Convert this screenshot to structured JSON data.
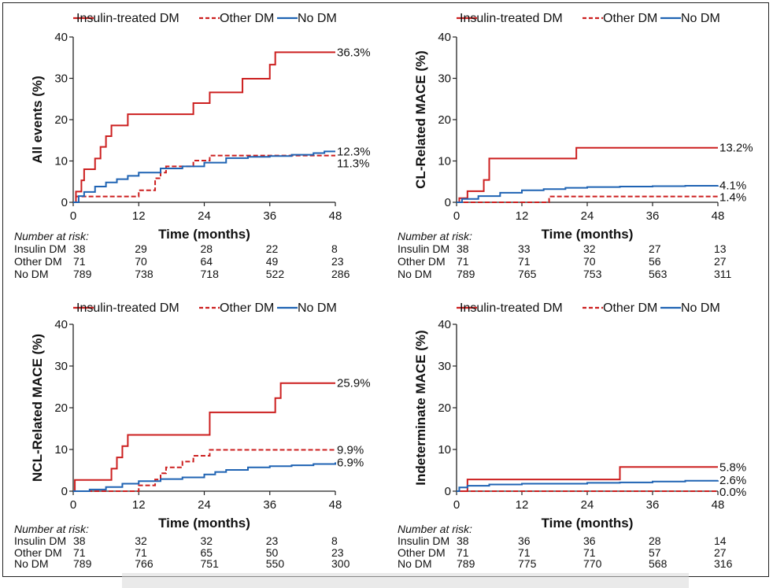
{
  "colors": {
    "insulin": "#cc1f1f",
    "other": "#cc1f1f",
    "nodm": "#1f63b3"
  },
  "legend": [
    {
      "label": "Insulin-treated DM",
      "style": "solid",
      "color": "#cc1f1f"
    },
    {
      "label": "Other DM",
      "style": "dashed",
      "color": "#cc1f1f"
    },
    {
      "label": "No DM",
      "style": "solid",
      "color": "#1f63b3"
    }
  ],
  "chart_data": [
    {
      "type": "line",
      "ylabel": "All events (%)",
      "xlabel": "Time (months)",
      "xlim": [
        0,
        48
      ],
      "ylim": [
        0,
        40
      ],
      "xticks": [
        0,
        12,
        24,
        36,
        48
      ],
      "yticks": [
        0,
        10,
        20,
        30,
        40
      ],
      "series": [
        {
          "name": "Insulin-treated DM",
          "style": "solid",
          "end_label": "36.3%",
          "x": [
            0,
            0.5,
            1.5,
            2,
            4,
            5,
            6,
            7,
            8,
            10,
            22,
            25,
            31,
            36,
            37,
            48
          ],
          "y": [
            0,
            2.6,
            5.3,
            8.0,
            10.6,
            13.4,
            16.0,
            18.6,
            18.6,
            21.3,
            24.0,
            26.6,
            29.9,
            33.3,
            36.3,
            36.3
          ]
        },
        {
          "name": "Other DM",
          "style": "dashed",
          "end_label": "11.3%",
          "x": [
            0,
            0.5,
            11,
            12,
            15,
            16,
            17,
            22,
            25,
            48
          ],
          "y": [
            0,
            1.4,
            1.4,
            2.9,
            5.8,
            7.2,
            8.7,
            10.1,
            11.3,
            11.3
          ]
        },
        {
          "name": "No DM",
          "style": "solid",
          "end_label": "12.3%",
          "x": [
            0,
            1,
            2,
            4,
            6,
            8,
            10,
            12,
            16,
            20,
            24,
            28,
            32,
            36,
            40,
            44,
            46,
            48
          ],
          "y": [
            0,
            1.5,
            2.5,
            3.8,
            4.8,
            5.6,
            6.4,
            7.2,
            8.2,
            8.7,
            9.6,
            10.7,
            11.0,
            11.2,
            11.5,
            11.9,
            12.3,
            12.3
          ]
        }
      ],
      "risk": {
        "title": "Number at risk:",
        "times": [
          0,
          12,
          24,
          36,
          48
        ],
        "rows": [
          {
            "label": "Insulin DM",
            "values": [
              "38",
              "29",
              "28",
              "22",
              "8"
            ]
          },
          {
            "label": "Other DM",
            "values": [
              "71",
              "70",
              "64",
              "49",
              "23"
            ]
          },
          {
            "label": "No DM",
            "values": [
              "789",
              "738",
              "718",
              "522",
              "286"
            ]
          }
        ]
      }
    },
    {
      "type": "line",
      "ylabel": "CL-Related MACE (%)",
      "xlabel": "Time (months)",
      "xlim": [
        0,
        48
      ],
      "ylim": [
        0,
        40
      ],
      "xticks": [
        0,
        12,
        24,
        36,
        48
      ],
      "yticks": [
        0,
        10,
        20,
        30,
        40
      ],
      "series": [
        {
          "name": "Insulin-treated DM",
          "style": "solid",
          "end_label": "13.2%",
          "x": [
            0,
            0.5,
            2,
            5,
            6,
            22,
            48
          ],
          "y": [
            0,
            1.0,
            2.7,
            5.4,
            10.6,
            13.2,
            13.2
          ]
        },
        {
          "name": "Other DM",
          "style": "dashed",
          "end_label": "1.4%",
          "x": [
            0,
            17,
            48
          ],
          "y": [
            0,
            1.4,
            1.4
          ]
        },
        {
          "name": "No DM",
          "style": "solid",
          "end_label": "4.1%",
          "x": [
            0,
            1,
            4,
            8,
            12,
            16,
            20,
            24,
            30,
            36,
            42,
            48
          ],
          "y": [
            0,
            0.8,
            1.5,
            2.3,
            2.9,
            3.2,
            3.5,
            3.7,
            3.8,
            3.9,
            4.0,
            4.1
          ]
        }
      ],
      "risk": {
        "title": "Number at risk:",
        "times": [
          0,
          12,
          24,
          36,
          48
        ],
        "rows": [
          {
            "label": "Insulin DM",
            "values": [
              "38",
              "33",
              "32",
              "27",
              "13"
            ]
          },
          {
            "label": "Other DM",
            "values": [
              "71",
              "71",
              "70",
              "56",
              "27"
            ]
          },
          {
            "label": "No DM",
            "values": [
              "789",
              "765",
              "753",
              "563",
              "311"
            ]
          }
        ]
      }
    },
    {
      "type": "line",
      "ylabel": "NCL-Related MACE (%)",
      "xlabel": "Time (months)",
      "xlim": [
        0,
        48
      ],
      "ylim": [
        0,
        40
      ],
      "xticks": [
        0,
        12,
        24,
        36,
        48
      ],
      "yticks": [
        0,
        10,
        20,
        30,
        40
      ],
      "series": [
        {
          "name": "Insulin-treated DM",
          "style": "solid",
          "end_label": "25.9%",
          "x": [
            0,
            0.3,
            7,
            8,
            9,
            10,
            25,
            37,
            38,
            48
          ],
          "y": [
            0,
            2.7,
            5.4,
            8.1,
            10.8,
            13.5,
            18.9,
            22.3,
            25.9,
            25.9
          ]
        },
        {
          "name": "Other DM",
          "style": "dashed",
          "end_label": "9.9%",
          "x": [
            0,
            12,
            15,
            16,
            17,
            20,
            22,
            25,
            48
          ],
          "y": [
            0,
            1.4,
            2.8,
            4.3,
            5.7,
            7.1,
            8.5,
            9.9,
            9.9
          ]
        },
        {
          "name": "No DM",
          "style": "solid",
          "end_label": "6.9%",
          "x": [
            0,
            3,
            6,
            9,
            12,
            16,
            20,
            24,
            26,
            28,
            32,
            36,
            40,
            44,
            48
          ],
          "y": [
            0,
            0.4,
            1.0,
            1.8,
            2.4,
            2.9,
            3.3,
            4.0,
            4.6,
            5.1,
            5.7,
            6.0,
            6.2,
            6.5,
            6.9
          ]
        }
      ],
      "risk": {
        "title": "Number at risk:",
        "times": [
          0,
          12,
          24,
          36,
          48
        ],
        "rows": [
          {
            "label": "Insulin DM",
            "values": [
              "38",
              "32",
              "32",
              "23",
              "8"
            ]
          },
          {
            "label": "Other DM",
            "values": [
              "71",
              "71",
              "65",
              "50",
              "23"
            ]
          },
          {
            "label": "No DM",
            "values": [
              "789",
              "766",
              "751",
              "550",
              "300"
            ]
          }
        ]
      }
    },
    {
      "type": "line",
      "ylabel": "Indeterminate MACE (%)",
      "xlabel": "Time (months)",
      "xlim": [
        0,
        48
      ],
      "ylim": [
        0,
        40
      ],
      "xticks": [
        0,
        12,
        24,
        36,
        48
      ],
      "yticks": [
        0,
        10,
        20,
        30,
        40
      ],
      "series": [
        {
          "name": "Insulin-treated DM",
          "style": "solid",
          "end_label": "5.8%",
          "x": [
            0,
            2,
            30,
            48
          ],
          "y": [
            0,
            2.8,
            5.8,
            5.8
          ]
        },
        {
          "name": "Other DM",
          "style": "dashed",
          "end_label": "0.0%",
          "x": [
            0,
            48
          ],
          "y": [
            0,
            0
          ]
        },
        {
          "name": "No DM",
          "style": "solid",
          "end_label": "2.6%",
          "x": [
            0,
            0.5,
            2,
            6,
            12,
            24,
            30,
            36,
            42,
            48
          ],
          "y": [
            0,
            0.9,
            1.3,
            1.6,
            1.8,
            2.0,
            2.1,
            2.3,
            2.5,
            2.6
          ]
        }
      ],
      "risk": {
        "title": "Number at risk:",
        "times": [
          0,
          12,
          24,
          36,
          48
        ],
        "rows": [
          {
            "label": "Insulin DM",
            "values": [
              "38",
              "36",
              "36",
              "28",
              "14"
            ]
          },
          {
            "label": "Other DM",
            "values": [
              "71",
              "71",
              "71",
              "57",
              "27"
            ]
          },
          {
            "label": "No DM",
            "values": [
              "789",
              "775",
              "770",
              "568",
              "316"
            ]
          }
        ]
      }
    }
  ]
}
